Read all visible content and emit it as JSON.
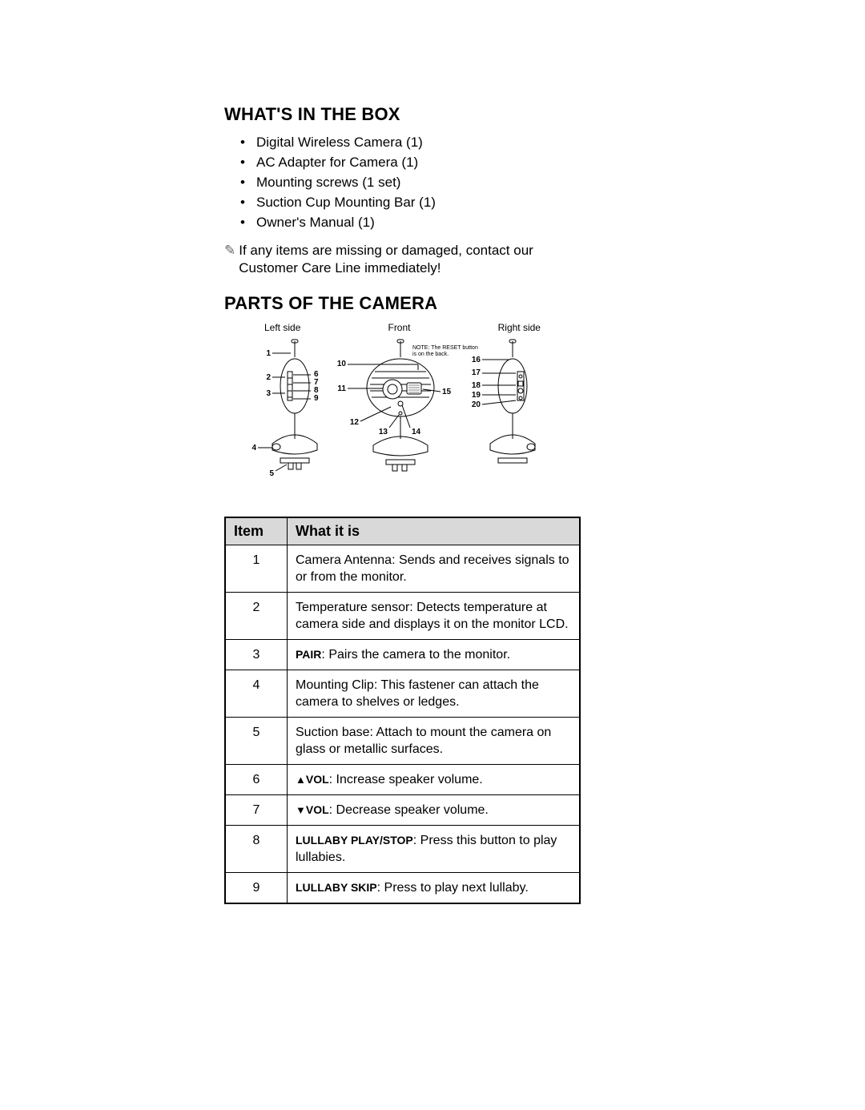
{
  "section1_heading": "WHAT'S IN THE BOX",
  "box_items": [
    "Digital Wireless Camera (1)",
    "AC Adapter for Camera (1)",
    "Mounting screws (1 set)",
    "Suction Cup Mounting Bar (1)",
    "Owner's Manual (1)"
  ],
  "note_text": "If any items are missing or damaged, contact our Customer Care Line immediately!",
  "section2_heading": "PARTS OF THE CAMERA",
  "diagram": {
    "labels": {
      "left": "Left side",
      "front": "Front",
      "right": "Right side"
    },
    "reset_note": "NOTE: The RESET button is on the back.",
    "callouts": [
      "1",
      "2",
      "3",
      "4",
      "5",
      "6",
      "7",
      "8",
      "9",
      "10",
      "11",
      "12",
      "13",
      "14",
      "15",
      "16",
      "17",
      "18",
      "19",
      "20"
    ]
  },
  "table": {
    "header_item": "Item",
    "header_what": "What it is",
    "rows": [
      {
        "n": "1",
        "html": "Camera Antenna:  Sends and receives signals to or from the monitor."
      },
      {
        "n": "2",
        "html": "Temperature sensor:  Detects temperature at camera side and displays it on the monitor LCD."
      },
      {
        "n": "3",
        "html": "<span class='bold'>PAIR</span>: Pairs the camera to the monitor."
      },
      {
        "n": "4",
        "html": "Mounting Clip:  This fastener can attach the camera to shelves or ledges."
      },
      {
        "n": "5",
        "html": "Suction base: Attach to mount the camera on glass or metallic surfaces."
      },
      {
        "n": "6",
        "html": "<span class='arrow'>▲</span><span class='bold'>VOL</span>: Increase speaker volume."
      },
      {
        "n": "7",
        "html": "<span class='arrow'>▼</span><span class='bold'>VOL</span>: Decrease speaker volume."
      },
      {
        "n": "8",
        "html": "<span class='bold'>LULLABY PLAY/STOP</span>: Press this button to play lullabies."
      },
      {
        "n": "9",
        "html": "<span class='bold'>LULLABY SKIP</span>: Press to play next lullaby."
      }
    ]
  },
  "colors": {
    "header_bg": "#d9d9d9",
    "border": "#000000",
    "text": "#000000",
    "note_icon": "#666666"
  }
}
